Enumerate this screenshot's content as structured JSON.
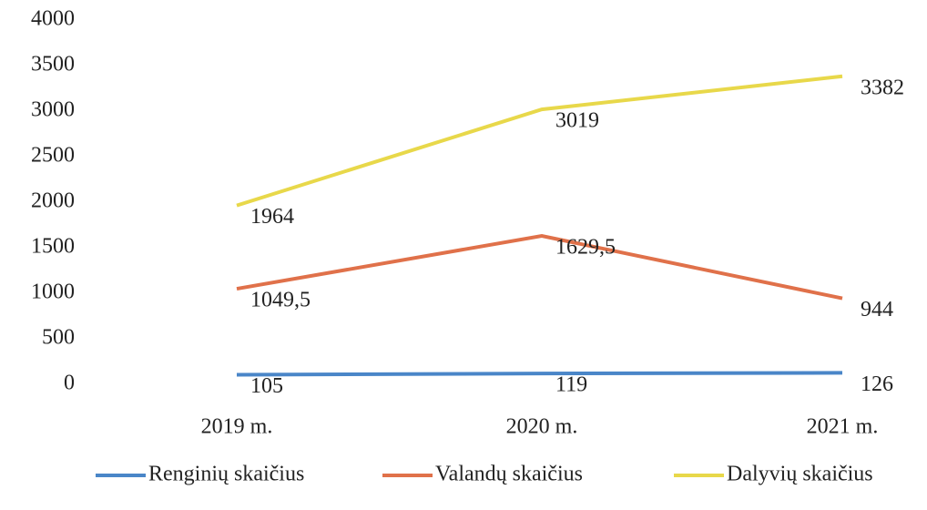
{
  "chart_data": {
    "type": "line",
    "categories": [
      "2019 m.",
      "2020 m.",
      "2021 m."
    ],
    "series": [
      {
        "name": "Renginių skaičius",
        "color": "#4a86c8",
        "values": [
          105,
          119,
          126
        ]
      },
      {
        "name": "Valandų skaičius",
        "color": "#e0714a",
        "values": [
          1049.5,
          1629.5,
          944
        ],
        "value_labels": [
          "1049,5",
          "1629,5",
          "944"
        ]
      },
      {
        "name": "Dalyvių skaičius",
        "color": "#e8d84a",
        "values": [
          1964,
          3019,
          3382
        ]
      }
    ],
    "ylim": [
      0,
      4000
    ],
    "yticks": [
      0,
      500,
      1000,
      1500,
      2000,
      2500,
      3000,
      3500,
      4000
    ],
    "grid": false,
    "legend": "bottom"
  }
}
